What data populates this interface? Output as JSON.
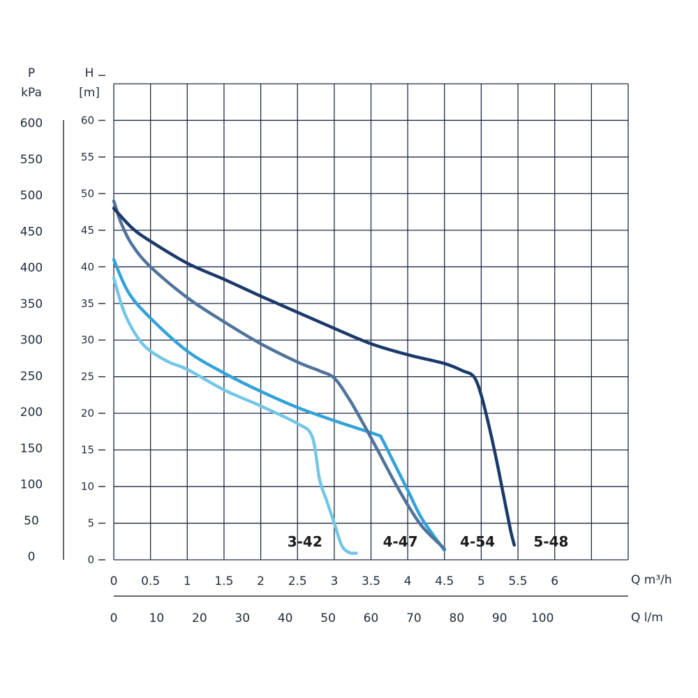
{
  "chart_data": {
    "type": "line",
    "axes": {
      "left_outer": {
        "label_line1": "P",
        "label_line2": "kPa",
        "ticks": [
          "600",
          "550",
          "500",
          "450",
          "400",
          "350",
          "300",
          "250",
          "200",
          "150",
          "100",
          "50",
          "0"
        ]
      },
      "left_inner": {
        "label_line1": "H",
        "label_line2": "[m]",
        "ticks": [
          "60",
          "55",
          "50",
          "45",
          "40",
          "35",
          "30",
          "25",
          "20",
          "15",
          "10",
          "5",
          "0"
        ],
        "ylim": [
          0,
          65
        ]
      },
      "bottom_primary": {
        "label": "Q m³/h",
        "ticks": [
          "0",
          "0.5",
          "1",
          "1.5",
          "2",
          "2.5",
          "3",
          "3.5",
          "4",
          "4.5",
          "5",
          "5.5",
          "6"
        ],
        "xlim": [
          0,
          7
        ]
      },
      "bottom_secondary": {
        "label": "Q l/m",
        "ticks": [
          "0",
          "10",
          "20",
          "30",
          "40",
          "50",
          "60",
          "70",
          "80",
          "90",
          "100"
        ]
      }
    },
    "grid": true,
    "series": [
      {
        "name": "3-42",
        "color": "#74c6e6",
        "x": [
          0,
          0.1,
          0.2,
          0.35,
          0.5,
          0.75,
          1.0,
          1.5,
          2.0,
          2.5,
          2.7,
          2.8,
          2.9,
          3.0,
          3.1,
          3.2,
          3.3
        ],
        "y": [
          38.5,
          35,
          32.5,
          30,
          28.5,
          27,
          26,
          23.2,
          21,
          18.6,
          16.8,
          11,
          8,
          5,
          2,
          1,
          0.9
        ]
      },
      {
        "name": "4-47",
        "color": "#33a2d9",
        "x": [
          0,
          0.2,
          0.5,
          1.0,
          1.5,
          2.0,
          2.5,
          3.0,
          3.3,
          3.6,
          3.65,
          3.8,
          4.0,
          4.2,
          4.5
        ],
        "y": [
          41,
          36.5,
          33,
          28.5,
          25.5,
          23,
          20.8,
          19,
          18,
          17,
          16.5,
          13.5,
          9.5,
          5.5,
          1.3
        ]
      },
      {
        "name": "4-54",
        "color": "#50739c",
        "x": [
          0,
          0.1,
          0.25,
          0.5,
          1.0,
          1.5,
          2.0,
          2.5,
          2.8,
          3.0,
          3.2,
          3.4,
          3.6,
          3.8,
          4.0,
          4.2,
          4.5
        ],
        "y": [
          49,
          46,
          43,
          40,
          35.8,
          32.5,
          29.5,
          27,
          25.8,
          24.8,
          22,
          18.5,
          14.8,
          11,
          7.5,
          4.5,
          1.5
        ]
      },
      {
        "name": "5-48",
        "color": "#1b3a6b",
        "x": [
          0,
          0.25,
          0.5,
          1.0,
          1.5,
          2.0,
          2.5,
          3.0,
          3.5,
          4.0,
          4.5,
          4.75,
          4.9,
          5.0,
          5.1,
          5.2,
          5.3,
          5.4,
          5.45
        ],
        "y": [
          48,
          45.3,
          43.5,
          40.5,
          38.3,
          36,
          33.8,
          31.6,
          29.5,
          28,
          26.8,
          25.8,
          25,
          22.5,
          18.5,
          14,
          9,
          4,
          2
        ]
      }
    ],
    "series_labels": [
      {
        "text": "3-42",
        "x": 2.6,
        "y": 1.8
      },
      {
        "text": "4-47",
        "x": 3.9,
        "y": 1.8
      },
      {
        "text": "4-54",
        "x": 4.95,
        "y": 1.8
      },
      {
        "text": "5-48",
        "x": 5.95,
        "y": 1.8
      }
    ]
  }
}
